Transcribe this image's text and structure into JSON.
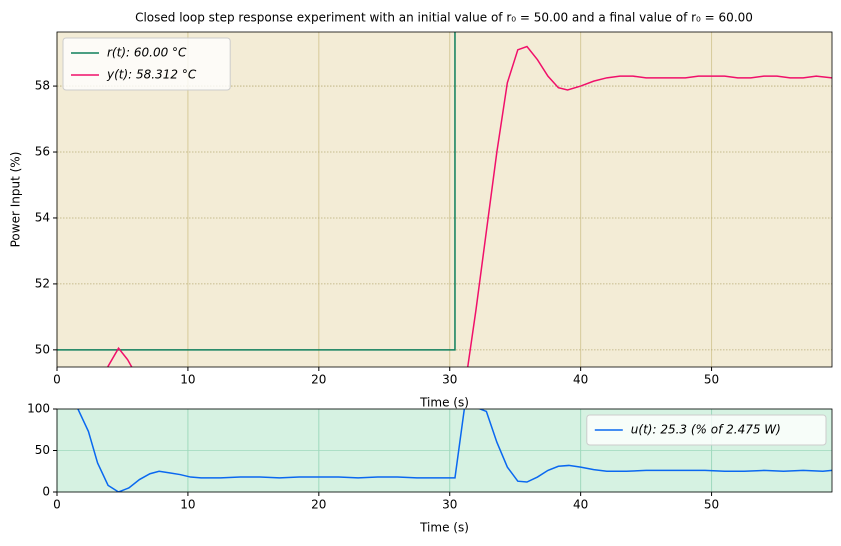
{
  "chart_data": [
    {
      "type": "line",
      "title": "Closed loop step response experiment with an initial value of  r₀ = 50.00 and a  final value of r₀ = 60.00",
      "x_label": "Time (s)",
      "y_label": "Power Input (%)",
      "xlim": [
        0,
        59.2
      ],
      "ylim": [
        49.48,
        59.64
      ],
      "xticks": [
        0,
        10,
        20,
        30,
        40,
        50
      ],
      "yticks": [
        50,
        52,
        54,
        56,
        58
      ],
      "grid": true,
      "background": "#f3ecd6",
      "legend": "upper left",
      "series": [
        {
          "name": "r(t):  60.00 °C",
          "color": "#0f7f5c",
          "x": [
            0,
            30.4,
            30.4,
            59.2
          ],
          "values": [
            50,
            50,
            60,
            60
          ]
        },
        {
          "name": "y(t):  58.312 °C",
          "color": "#f0106a",
          "x": [
            3.1,
            3.9,
            4.7,
            5.4,
            6.1,
            30.4,
            31.2,
            32.0,
            32.8,
            33.6,
            34.4,
            35.2,
            35.9,
            36.7,
            37.5,
            38.3,
            39.0,
            40,
            41,
            42,
            43,
            44,
            45,
            46,
            47,
            48,
            49,
            50,
            51,
            52,
            53,
            54,
            55,
            56,
            57,
            58,
            59.2
          ],
          "values": [
            48.6,
            49.5,
            50.05,
            49.7,
            49.2,
            47.0,
            49.0,
            51.2,
            53.6,
            56.0,
            58.1,
            59.1,
            59.2,
            58.8,
            58.3,
            57.95,
            57.88,
            58.0,
            58.15,
            58.25,
            58.3,
            58.3,
            58.25,
            58.25,
            58.25,
            58.25,
            58.3,
            58.3,
            58.3,
            58.25,
            58.25,
            58.3,
            58.3,
            58.25,
            58.25,
            58.3,
            58.25
          ]
        }
      ]
    },
    {
      "type": "line",
      "x_label": "Time (s)",
      "xlim": [
        0,
        59.2
      ],
      "ylim": [
        0,
        100
      ],
      "xticks": [
        0,
        10,
        20,
        30,
        40,
        50
      ],
      "yticks": [
        0,
        50,
        100
      ],
      "grid": true,
      "background": "#d6f2e2",
      "legend": "upper right",
      "series": [
        {
          "name": "u(t):  25.3 (% of 2.475 W)",
          "color": "#0a68f0",
          "x": [
            0.8,
            1.6,
            2.4,
            3.1,
            3.9,
            4.7,
            5.5,
            6.3,
            7.1,
            7.8,
            8.6,
            9.4,
            10.2,
            11.0,
            12.5,
            14.0,
            15.5,
            17.0,
            18.5,
            20.0,
            21.5,
            23.0,
            24.5,
            26.0,
            27.5,
            29.0,
            30.4,
            31.2,
            32.0,
            32.8,
            33.6,
            34.4,
            35.2,
            35.9,
            36.7,
            37.5,
            38.3,
            39.1,
            40.0,
            41.0,
            42.0,
            43.5,
            45.0,
            46.5,
            48.0,
            49.5,
            51.0,
            52.5,
            54.0,
            55.5,
            57.0,
            58.5,
            59.2
          ],
          "values": [
            115,
            100,
            73,
            35,
            8,
            0,
            5,
            15,
            22,
            25,
            23,
            21,
            18,
            17,
            17,
            18,
            18,
            17,
            18,
            18,
            18,
            17,
            18,
            18,
            17,
            17,
            17,
            110,
            102,
            97,
            60,
            30,
            13,
            12,
            18,
            26,
            31,
            32,
            30,
            27,
            25,
            25,
            26,
            26,
            26,
            26,
            25,
            25,
            26,
            25,
            26,
            25,
            26
          ]
        }
      ]
    }
  ]
}
